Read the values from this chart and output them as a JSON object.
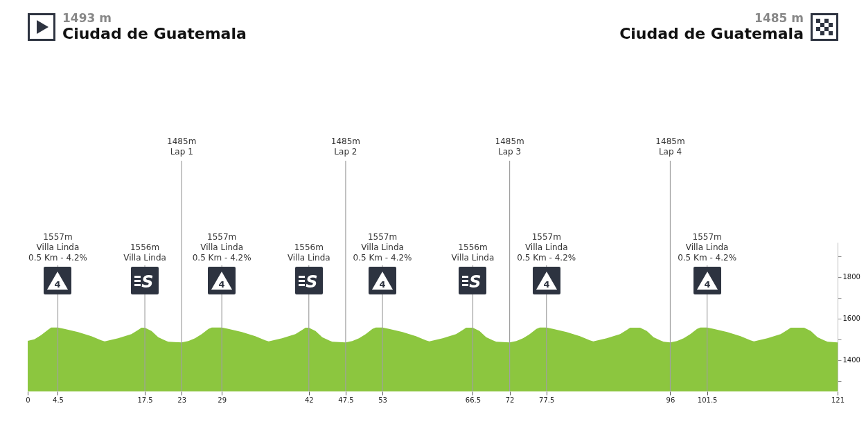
{
  "chart_data": {
    "type": "area",
    "title": "Ciudad de Guatemala",
    "subtitle": "1493 m",
    "color": "#8cc63f",
    "x": [
      0,
      1,
      2,
      3,
      3.5,
      4.5,
      5.5,
      7.5,
      9.5,
      11,
      11.5,
      13.5,
      15.5,
      16.5,
      17,
      17.5,
      18.5,
      19.5,
      20.5,
      21,
      23,
      24,
      25,
      26,
      27,
      27.5,
      29,
      30,
      32,
      34,
      35.5,
      36,
      38,
      40,
      41,
      41.5,
      42,
      43,
      44,
      45,
      45.5,
      47.5,
      48.5,
      49.5,
      50.5,
      51.5,
      52,
      53,
      54,
      56,
      58,
      59.5,
      60,
      62,
      64,
      65,
      65.5,
      66.5,
      67.5,
      68.5,
      69.5,
      70,
      72,
      73,
      74,
      75,
      76,
      76.5,
      77.5,
      78.5,
      80.5,
      82.5,
      84,
      84.5,
      86.5,
      88.5,
      89.5,
      90,
      91.5,
      92.5,
      93.5,
      94.5,
      95,
      96,
      97,
      98,
      99,
      100,
      100.5,
      101.5,
      102.5,
      104.5,
      106.5,
      108,
      108.5,
      110.5,
      112.5,
      113.5,
      114,
      116,
      117,
      118,
      119,
      119.5,
      121
    ],
    "values": [
      1493,
      1500,
      1520,
      1545,
      1557,
      1557,
      1550,
      1535,
      1515,
      1495,
      1490,
      1505,
      1525,
      1545,
      1556,
      1556,
      1540,
      1510,
      1495,
      1489,
      1485,
      1492,
      1505,
      1525,
      1550,
      1557,
      1557,
      1550,
      1535,
      1515,
      1495,
      1490,
      1505,
      1525,
      1545,
      1556,
      1556,
      1540,
      1510,
      1495,
      1489,
      1485,
      1492,
      1505,
      1525,
      1550,
      1557,
      1557,
      1550,
      1535,
      1515,
      1495,
      1490,
      1505,
      1525,
      1545,
      1556,
      1556,
      1540,
      1510,
      1495,
      1489,
      1485,
      1492,
      1505,
      1525,
      1550,
      1557,
      1557,
      1550,
      1535,
      1515,
      1495,
      1490,
      1505,
      1525,
      1545,
      1556,
      1556,
      1540,
      1510,
      1495,
      1489,
      1485,
      1492,
      1505,
      1525,
      1550,
      1557,
      1557,
      1550,
      1535,
      1515,
      1495,
      1490,
      1505,
      1525,
      1545,
      1556,
      1556,
      1540,
      1510,
      1495,
      1489,
      1485
    ],
    "xlim": [
      0,
      121
    ],
    "xticks": [
      0,
      4.5,
      17.5,
      23,
      29,
      42,
      47.5,
      53,
      66.5,
      72,
      77.5,
      96,
      101.5,
      121
    ],
    "ylim": [
      1250,
      1965
    ],
    "yticks": [
      {
        "value": 1300,
        "label": null
      },
      1400,
      {
        "value": 1500,
        "label": null
      },
      1600,
      {
        "value": 1700,
        "label": null
      },
      1800,
      {
        "value": 1900,
        "label": null
      }
    ],
    "ref_lines": [
      {
        "axis": "x",
        "value": 4.5,
        "label": "1557m\nVilla Linda\n0.5 Km - 4.2%"
      },
      {
        "axis": "x",
        "value": 17.5,
        "label": "1556m\nVilla Linda"
      },
      {
        "axis": "x",
        "value": 23,
        "label": "1485m\nLap 1"
      },
      {
        "axis": "x",
        "value": 29,
        "label": "1557m\nVilla Linda\n0.5 Km - 4.2%"
      },
      {
        "axis": "x",
        "value": 42,
        "label": "1556m\nVilla Linda"
      },
      {
        "axis": "x",
        "value": 47.5,
        "label": "1485m\nLap 2"
      },
      {
        "axis": "x",
        "value": 53,
        "label": "1557m\nVilla Linda\n0.5 Km - 4.2%"
      },
      {
        "axis": "x",
        "value": 66.5,
        "label": "1556m\nVilla Linda"
      },
      {
        "axis": "x",
        "value": 72,
        "label": "1485m\nLap 3"
      },
      {
        "axis": "x",
        "value": 77.5,
        "label": "1557m\nVilla Linda\n0.5 Km - 4.2%"
      },
      {
        "axis": "x",
        "value": 96,
        "label": "1485m\nLap 4"
      },
      {
        "axis": "x",
        "value": 101.5,
        "label": "1557m\nVilla Linda\n0.5 Km - 4.2%"
      }
    ],
    "annotations": [
      "1485 m",
      "Ciudad de Guatemala",
      {
        "text": "4",
        "x": 4.5
      },
      {
        "text": "S",
        "x": 17.5
      },
      {
        "text": "4",
        "x": 29
      },
      {
        "text": "S",
        "x": 42
      },
      {
        "text": "4",
        "x": 53
      },
      {
        "text": "S",
        "x": 66.5
      },
      {
        "text": "4",
        "x": 77.5
      },
      {
        "text": "4",
        "x": 101.5
      }
    ]
  }
}
